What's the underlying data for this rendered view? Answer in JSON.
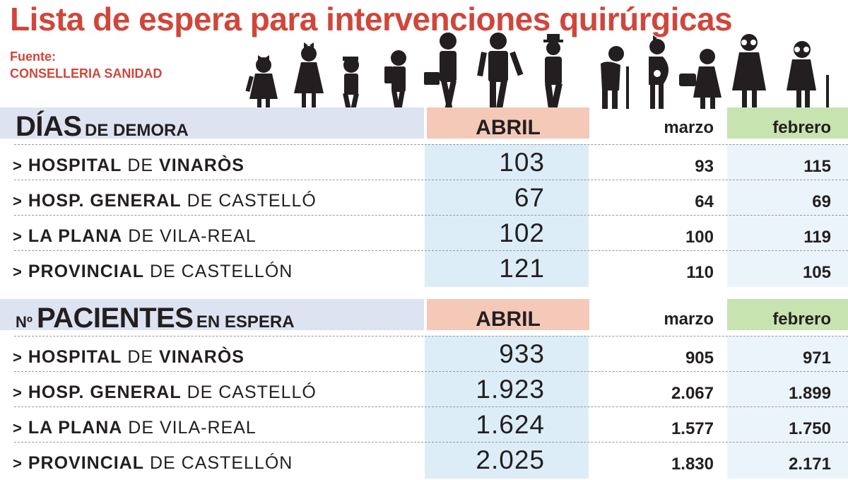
{
  "title": "Lista de espera para intervenciones quirúrgicas",
  "source": {
    "label": "Fuente:",
    "name": "CONSELLERIA SANIDAD"
  },
  "colors": {
    "title": "#d0463b",
    "abril_header": "#f4c9b8",
    "febrero_header": "#c7e3b0",
    "abril_column": "#dcedf8",
    "section_band": "#dde3f0"
  },
  "figures": [
    "girl-with-bow-icon",
    "girl-with-bow-icon",
    "boy-with-cap-icon",
    "child-with-backpack-icon",
    "student-with-briefcase-icon",
    "man-in-suit-icon",
    "man-with-hat-icon",
    "elderly-man-with-cane-icon",
    "pregnant-woman-icon",
    "woman-with-bag-icon",
    "elderly-woman-icon",
    "elderly-woman-with-cane-icon"
  ],
  "sections": [
    {
      "title_pre": "",
      "title_main": "DÍAS",
      "title_rest": "DE DEMORA",
      "columns": {
        "abril": "ABRIL",
        "marzo": "marzo",
        "febrero": "febrero"
      },
      "rows": [
        {
          "arrow": ">",
          "strong1": "HOSPITAL",
          "weak": "DE",
          "strong2": "VINARÒS",
          "abril": "103",
          "marzo": "93",
          "febrero": "115"
        },
        {
          "arrow": ">",
          "strong1": "HOSP. GENERAL",
          "weak": "DE CASTELLÓ",
          "strong2": "",
          "abril": "67",
          "marzo": "64",
          "febrero": "69"
        },
        {
          "arrow": ">",
          "strong1": "LA PLANA",
          "weak": "DE VILA-REAL",
          "strong2": "",
          "abril": "102",
          "marzo": "100",
          "febrero": "119"
        },
        {
          "arrow": ">",
          "strong1": "PROVINCIAL",
          "weak": "DE CASTELLÓN",
          "strong2": "",
          "abril": "121",
          "marzo": "110",
          "febrero": "105"
        }
      ]
    },
    {
      "title_pre": "Nº",
      "title_main": "PACIENTES",
      "title_rest": "EN ESPERA",
      "columns": {
        "abril": "ABRIL",
        "marzo": "marzo",
        "febrero": "febrero"
      },
      "rows": [
        {
          "arrow": ">",
          "strong1": "HOSPITAL",
          "weak": "DE",
          "strong2": "VINARÒS",
          "abril": "933",
          "marzo": "905",
          "febrero": "971"
        },
        {
          "arrow": ">",
          "strong1": "HOSP. GENERAL",
          "weak": "DE CASTELLÓ",
          "strong2": "",
          "abril": "1.923",
          "marzo": "2.067",
          "febrero": "1.899"
        },
        {
          "arrow": ">",
          "strong1": "LA PLANA",
          "weak": "DE VILA-REAL",
          "strong2": "",
          "abril": "1.624",
          "marzo": "1.577",
          "febrero": "1.750"
        },
        {
          "arrow": ">",
          "strong1": "PROVINCIAL",
          "weak": "DE CASTELLÓN",
          "strong2": "",
          "abril": "2.025",
          "marzo": "1.830",
          "febrero": "2.171"
        }
      ]
    }
  ]
}
